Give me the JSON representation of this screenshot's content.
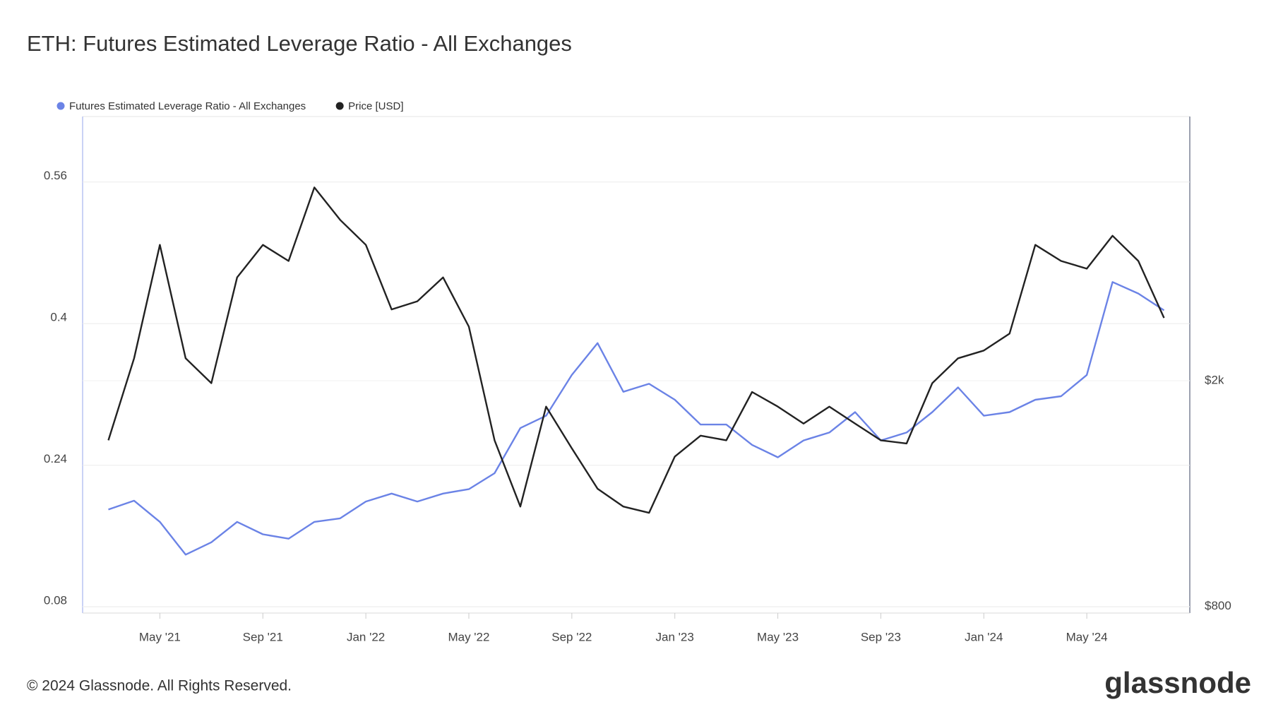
{
  "chart_data": {
    "type": "line",
    "title": "ETH: Futures Estimated Leverage Ratio - All Exchanges",
    "footer": "© 2024 Glassnode. All Rights Reserved.",
    "brand": "glassnode",
    "legend_position": "top-left",
    "grid": true,
    "x": [
      "2021-03",
      "2021-04",
      "2021-05",
      "2021-06",
      "2021-07",
      "2021-08",
      "2021-09",
      "2021-10",
      "2021-11",
      "2021-12",
      "2022-01",
      "2022-02",
      "2022-03",
      "2022-04",
      "2022-05",
      "2022-06",
      "2022-07",
      "2022-08",
      "2022-09",
      "2022-10",
      "2022-11",
      "2022-12",
      "2023-01",
      "2023-02",
      "2023-03",
      "2023-04",
      "2023-05",
      "2023-06",
      "2023-07",
      "2023-08",
      "2023-09",
      "2023-10",
      "2023-11",
      "2023-12",
      "2024-01",
      "2024-02",
      "2024-03",
      "2024-04",
      "2024-05",
      "2024-06",
      "2024-07",
      "2024-08"
    ],
    "xlim": [
      "2021-02",
      "2024-09"
    ],
    "xticks": [
      {
        "value": "2021-05",
        "label": "May '21"
      },
      {
        "value": "2021-09",
        "label": "Sep '21"
      },
      {
        "value": "2022-01",
        "label": "Jan '22"
      },
      {
        "value": "2022-05",
        "label": "May '22"
      },
      {
        "value": "2022-09",
        "label": "Sep '22"
      },
      {
        "value": "2023-01",
        "label": "Jan '23"
      },
      {
        "value": "2023-05",
        "label": "May '23"
      },
      {
        "value": "2023-09",
        "label": "Sep '23"
      },
      {
        "value": "2024-01",
        "label": "Jan '24"
      },
      {
        "value": "2024-05",
        "label": "May '24"
      }
    ],
    "ylim": [
      0.073,
      0.634
    ],
    "yticks": [
      0.08,
      0.24,
      0.4,
      0.56
    ],
    "y2lim": [
      779,
      5840
    ],
    "y2log": true,
    "y2ticks": [
      {
        "value": 800,
        "label": "$800"
      },
      {
        "value": 2000,
        "label": "$2k"
      }
    ],
    "series": [
      {
        "name": "Futures Estimated Leverage Ratio - All Exchanges",
        "color": "#6b83e6",
        "values": [
          0.19,
          0.2,
          0.176,
          0.139,
          0.153,
          0.176,
          0.162,
          0.157,
          0.176,
          0.18,
          0.199,
          0.208,
          0.199,
          0.208,
          0.213,
          0.231,
          0.282,
          0.296,
          0.342,
          0.378,
          0.323,
          0.332,
          0.314,
          0.286,
          0.286,
          0.263,
          0.249,
          0.268,
          0.277,
          0.3,
          0.268,
          0.277,
          0.3,
          0.328,
          0.296,
          0.3,
          0.314,
          0.318,
          0.342,
          0.447,
          0.434,
          0.415
        ]
      },
      {
        "name": "Price [USD]",
        "color": "#222222",
        "axis": "y2",
        "values": [
          1570,
          2190,
          3470,
          2190,
          1980,
          3040,
          3470,
          3250,
          4380,
          3840,
          3470,
          2670,
          2760,
          3040,
          2490,
          1570,
          1200,
          1800,
          1520,
          1290,
          1200,
          1170,
          1470,
          1600,
          1570,
          1910,
          1800,
          1680,
          1800,
          1680,
          1570,
          1550,
          1980,
          2190,
          2260,
          2420,
          3470,
          3250,
          3150,
          3600,
          3250,
          2580
        ]
      }
    ]
  }
}
